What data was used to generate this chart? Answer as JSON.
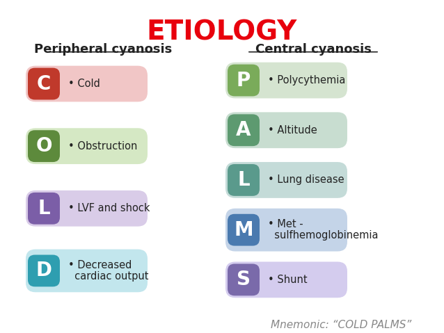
{
  "title": "ETIOLOGY",
  "title_color": "#e8000d",
  "title_fontsize": 28,
  "left_heading": "Peripheral cyanosis",
  "right_heading": "Central cyanosis",
  "heading_fontsize": 13,
  "background_color": "#ffffff",
  "left_items": [
    {
      "letter": "C",
      "text": "Cold",
      "letter_color": "#c0392b",
      "bg_color": "#f1c6c6",
      "letter_bg": "#c0392b"
    },
    {
      "letter": "O",
      "text": "Obstruction",
      "letter_color": "#5d8a3c",
      "bg_color": "#d5e8c4",
      "letter_bg": "#5d8a3c"
    },
    {
      "letter": "L",
      "text": "LVF and shock",
      "letter_color": "#7b5ea7",
      "bg_color": "#d9cce8",
      "letter_bg": "#7b5ea7"
    },
    {
      "letter": "D",
      "text": "Decreased\ncardiac output",
      "letter_color": "#2e9eb0",
      "bg_color": "#c2e6ed",
      "letter_bg": "#2e9eb0"
    }
  ],
  "right_items": [
    {
      "letter": "P",
      "text": "Polycythemia",
      "letter_color": "#5d8a3c",
      "bg_color": "#d5e4d0",
      "letter_bg": "#7aab5a"
    },
    {
      "letter": "A",
      "text": "Altitude",
      "letter_color": "#5d8a3c",
      "bg_color": "#c8ddd0",
      "letter_bg": "#5d9a70"
    },
    {
      "letter": "L",
      "text": "Lung disease",
      "letter_color": "#5a8a80",
      "bg_color": "#c4dbd8",
      "letter_bg": "#5a9a8c"
    },
    {
      "letter": "M",
      "text": "Met -\nsulfhemoglobinemia",
      "letter_color": "#3a6b9a",
      "bg_color": "#c4d4e8",
      "letter_bg": "#4a7aaf"
    },
    {
      "letter": "S",
      "text": "Shunt",
      "letter_color": "#6a5a9a",
      "bg_color": "#d4ccee",
      "letter_bg": "#7a6aaa"
    }
  ],
  "mnemonic": "Mnemonic: “COLD PALMS”",
  "mnemonic_color": "#888888",
  "mnemonic_fontsize": 11
}
